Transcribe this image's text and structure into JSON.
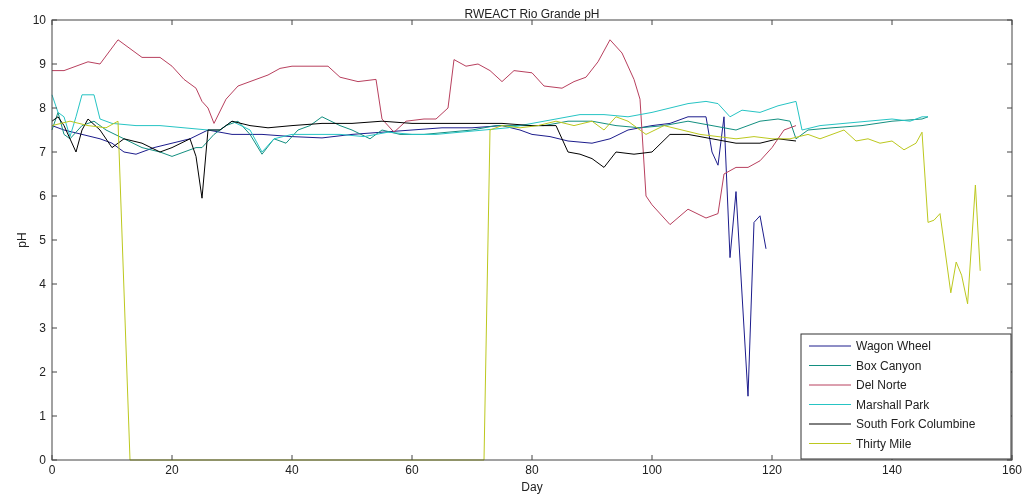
{
  "chart_data": {
    "type": "line",
    "title": "RWEACT Rio Grande pH",
    "xlabel": "Day",
    "ylabel": "pH",
    "xlim": [
      0,
      160
    ],
    "xticks": [
      0,
      20,
      40,
      60,
      80,
      100,
      120,
      140,
      160
    ],
    "ylim": [
      0,
      10
    ],
    "yticks": [
      0,
      1,
      2,
      3,
      4,
      5,
      6,
      7,
      8,
      9,
      10
    ],
    "grid": false,
    "legend": "bottom right",
    "line_style": "solid",
    "series": [
      {
        "name": "Wagon Wheel",
        "color": "#1c1c8c",
        "x": [
          0,
          2,
          5,
          8,
          10,
          12,
          14,
          17,
          20,
          23,
          26,
          30,
          35,
          40,
          45,
          50,
          55,
          60,
          65,
          70,
          75,
          78,
          80,
          83,
          86,
          90,
          93,
          96,
          100,
          103,
          106,
          109,
          110,
          111,
          112,
          113,
          114,
          116,
          117,
          118,
          119
        ],
        "values": [
          7.6,
          7.5,
          7.4,
          7.3,
          7.2,
          7.0,
          6.95,
          7.1,
          7.2,
          7.3,
          7.5,
          7.4,
          7.4,
          7.35,
          7.32,
          7.4,
          7.45,
          7.5,
          7.55,
          7.55,
          7.6,
          7.5,
          7.4,
          7.35,
          7.25,
          7.2,
          7.3,
          7.5,
          7.6,
          7.65,
          7.8,
          7.8,
          7.0,
          6.7,
          7.8,
          4.6,
          6.1,
          1.45,
          5.4,
          5.55,
          4.8
        ]
      },
      {
        "name": "Box Canyon",
        "color": "#138f80",
        "x": [
          0,
          1,
          2,
          3,
          5,
          7,
          9,
          12,
          15,
          18,
          20,
          22,
          24,
          25,
          27,
          29,
          31,
          33,
          35,
          37,
          39,
          41,
          43,
          45,
          48,
          50,
          53,
          55,
          58,
          62,
          66,
          70,
          74,
          78,
          82,
          86,
          90,
          94,
          98,
          102,
          106,
          110,
          114,
          118,
          121,
          123,
          124,
          126,
          130,
          135,
          140,
          145,
          146
        ],
        "values": [
          7.5,
          7.9,
          7.4,
          7.3,
          7.6,
          7.7,
          7.5,
          7.3,
          7.1,
          7.0,
          6.9,
          7.0,
          7.1,
          7.1,
          7.4,
          7.6,
          7.7,
          7.4,
          6.95,
          7.3,
          7.2,
          7.5,
          7.6,
          7.8,
          7.6,
          7.5,
          7.3,
          7.5,
          7.4,
          7.4,
          7.45,
          7.5,
          7.6,
          7.6,
          7.6,
          7.7,
          7.7,
          7.6,
          7.55,
          7.6,
          7.7,
          7.6,
          7.5,
          7.7,
          7.75,
          7.7,
          7.3,
          7.5,
          7.55,
          7.6,
          7.7,
          7.75,
          7.8
        ]
      },
      {
        "name": "Del Norte",
        "color": "#b8405e",
        "x": [
          0,
          2,
          4,
          6,
          8,
          11,
          13,
          15,
          18,
          20,
          22,
          24,
          25,
          26,
          27,
          29,
          31,
          34,
          36,
          38,
          40,
          43,
          46,
          48,
          51,
          54,
          55,
          57,
          59,
          62,
          64,
          66,
          67,
          69,
          71,
          73,
          75,
          77,
          80,
          82,
          85,
          87,
          89,
          91,
          93,
          95,
          97,
          98,
          99,
          100,
          103,
          106,
          109,
          111,
          112,
          114,
          116,
          118,
          120,
          122,
          124
        ],
        "values": [
          8.85,
          8.85,
          8.95,
          9.05,
          9.0,
          9.55,
          9.35,
          9.15,
          9.15,
          8.95,
          8.65,
          8.45,
          8.15,
          8.0,
          7.65,
          8.2,
          8.5,
          8.65,
          8.75,
          8.9,
          8.95,
          8.95,
          8.95,
          8.7,
          8.6,
          8.65,
          7.75,
          7.45,
          7.7,
          7.75,
          7.75,
          8.0,
          9.1,
          8.95,
          9.0,
          8.85,
          8.6,
          8.85,
          8.8,
          8.5,
          8.45,
          8.6,
          8.7,
          9.05,
          9.55,
          9.25,
          8.65,
          8.2,
          6.0,
          5.8,
          5.35,
          5.7,
          5.5,
          5.6,
          6.5,
          6.65,
          6.65,
          6.8,
          7.1,
          7.5,
          7.6
        ]
      },
      {
        "name": "Marshall Park",
        "color": "#26c4c4",
        "x": [
          0,
          1,
          2,
          3,
          4,
          5,
          7,
          8,
          10,
          14,
          18,
          22,
          26,
          28,
          30,
          33,
          35,
          37,
          40,
          44,
          48,
          52,
          56,
          60,
          64,
          68,
          72,
          76,
          80,
          84,
          88,
          92,
          96,
          100,
          103,
          106,
          109,
          111,
          113,
          115,
          118,
          121,
          124,
          125,
          128,
          132,
          136,
          140,
          143,
          145,
          146
        ],
        "values": [
          8.3,
          7.9,
          7.8,
          7.35,
          7.8,
          8.3,
          8.3,
          7.75,
          7.65,
          7.6,
          7.6,
          7.55,
          7.5,
          7.5,
          7.7,
          7.5,
          7.0,
          7.3,
          7.4,
          7.4,
          7.4,
          7.35,
          7.45,
          7.4,
          7.4,
          7.45,
          7.5,
          7.55,
          7.65,
          7.75,
          7.85,
          7.85,
          7.8,
          7.9,
          8.0,
          8.1,
          8.15,
          8.1,
          7.8,
          7.95,
          7.9,
          8.05,
          8.15,
          7.5,
          7.6,
          7.65,
          7.7,
          7.75,
          7.7,
          7.8,
          7.8
        ]
      },
      {
        "name": "South Fork Columbine",
        "color": "#000000",
        "x": [
          0,
          1,
          2,
          4,
          5,
          6,
          8,
          10,
          12,
          15,
          18,
          20,
          23,
          24,
          25,
          26,
          28,
          30,
          33,
          36,
          40,
          45,
          50,
          55,
          60,
          65,
          70,
          75,
          80,
          84,
          86,
          88,
          90,
          92,
          94,
          97,
          100,
          103,
          106,
          110,
          114,
          118,
          121,
          124
        ],
        "values": [
          7.7,
          7.8,
          7.6,
          7.0,
          7.5,
          7.75,
          7.5,
          7.1,
          7.3,
          7.2,
          7.0,
          7.1,
          7.3,
          6.9,
          5.95,
          7.5,
          7.5,
          7.7,
          7.6,
          7.55,
          7.6,
          7.65,
          7.65,
          7.7,
          7.65,
          7.65,
          7.65,
          7.65,
          7.6,
          7.6,
          7.0,
          6.95,
          6.85,
          6.65,
          7.0,
          6.95,
          7.0,
          7.4,
          7.4,
          7.3,
          7.2,
          7.2,
          7.3,
          7.25
        ]
      },
      {
        "name": "Thirty Mile",
        "color": "#bcc81e",
        "x": [
          0,
          3,
          6,
          9,
          11,
          13,
          72,
          73,
          75,
          78,
          81,
          84,
          87,
          90,
          92,
          94,
          96,
          99,
          102,
          105,
          108,
          111,
          114,
          117,
          120,
          123,
          126,
          128,
          130,
          132,
          134,
          136,
          138,
          140,
          142,
          144,
          145,
          146,
          147,
          148,
          149.8,
          150.7,
          151.6,
          152.6,
          153.9,
          154.7
        ],
        "values": [
          7.6,
          7.7,
          7.6,
          7.55,
          7.7,
          0,
          0,
          7.5,
          7.6,
          7.55,
          7.6,
          7.7,
          7.6,
          7.7,
          7.5,
          7.8,
          7.7,
          7.4,
          7.6,
          7.5,
          7.4,
          7.35,
          7.3,
          7.35,
          7.3,
          7.3,
          7.4,
          7.3,
          7.4,
          7.5,
          7.25,
          7.3,
          7.2,
          7.25,
          7.05,
          7.2,
          7.45,
          5.4,
          5.45,
          5.6,
          3.8,
          4.5,
          4.2,
          3.55,
          6.25,
          4.3
        ]
      }
    ]
  }
}
